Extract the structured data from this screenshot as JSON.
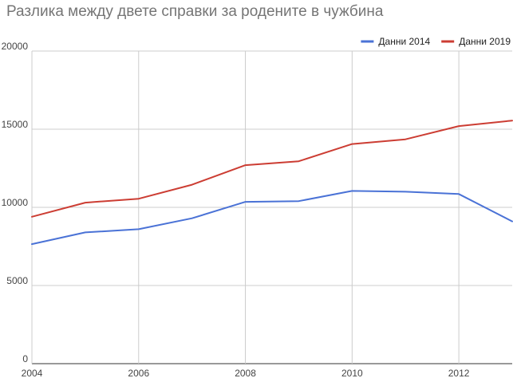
{
  "chart_data": {
    "type": "line",
    "title": "Разлика между двете справки за родените в чужбина",
    "xlabel": "",
    "ylabel": "",
    "x": [
      2004,
      2005,
      2006,
      2007,
      2008,
      2009,
      2010,
      2011,
      2012,
      2013
    ],
    "x_ticks": [
      "2004",
      "2006",
      "2008",
      "2010",
      "2012"
    ],
    "y_ticks": [
      "0",
      "5000",
      "10000",
      "15000",
      "20000"
    ],
    "xlim": [
      2004,
      2013
    ],
    "ylim": [
      0,
      20000
    ],
    "grid": true,
    "legend_position": "top-right",
    "series": [
      {
        "name": "Данни 2014",
        "color": "#4a72d6",
        "values": [
          7650,
          8400,
          8600,
          9300,
          10350,
          10400,
          11050,
          11000,
          10850,
          9100
        ]
      },
      {
        "name": "Данни 2019",
        "color": "#cc3d33",
        "values": [
          9400,
          10300,
          10550,
          11450,
          12700,
          12950,
          14050,
          14350,
          15200,
          15550
        ]
      }
    ]
  }
}
